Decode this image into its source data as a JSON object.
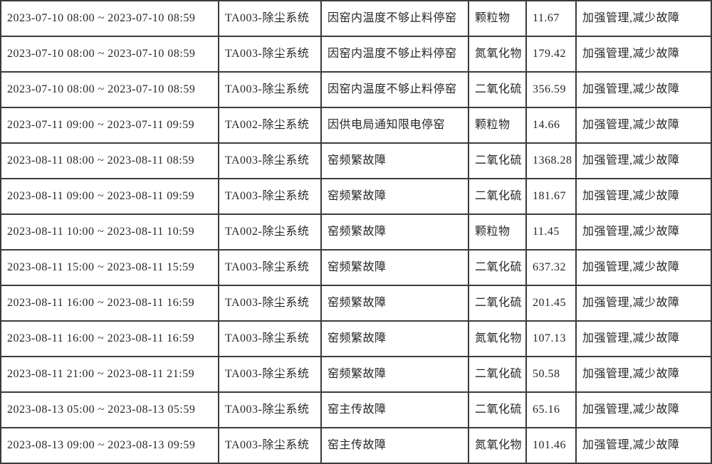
{
  "colors": {
    "border": "#3b3b3b",
    "text": "#262626",
    "background": "#ffffff"
  },
  "table": {
    "column_keys": [
      "time_range",
      "system",
      "reason",
      "pollutant",
      "value",
      "suggestion"
    ],
    "column_names": [
      "time-range-cell",
      "system-cell",
      "reason-cell",
      "pollutant-cell",
      "value-cell",
      "suggestion-cell"
    ],
    "rows": [
      {
        "time_range": "2023-07-10 08:00 ~ 2023-07-10 08:59",
        "system": "TA003-除尘系统",
        "reason": "因窑内温度不够止料停窑",
        "pollutant": "颗粒物",
        "value": "11.67",
        "suggestion": "加强管理,减少故障"
      },
      {
        "time_range": "2023-07-10 08:00 ~ 2023-07-10 08:59",
        "system": "TA003-除尘系统",
        "reason": "因窑内温度不够止料停窑",
        "pollutant": "氮氧化物",
        "value": "179.42",
        "suggestion": "加强管理,减少故障"
      },
      {
        "time_range": "2023-07-10 08:00 ~ 2023-07-10 08:59",
        "system": "TA003-除尘系统",
        "reason": "因窑内温度不够止料停窑",
        "pollutant": "二氧化硫",
        "value": "356.59",
        "suggestion": "加强管理,减少故障"
      },
      {
        "time_range": "2023-07-11 09:00 ~ 2023-07-11 09:59",
        "system": "TA002-除尘系统",
        "reason": "因供电局通知限电停窑",
        "pollutant": "颗粒物",
        "value": "14.66",
        "suggestion": "加强管理,减少故障"
      },
      {
        "time_range": "2023-08-11 08:00 ~ 2023-08-11 08:59",
        "system": "TA003-除尘系统",
        "reason": "窑频繁故障",
        "pollutant": "二氧化硫",
        "value": "1368.28",
        "suggestion": "加强管理,减少故障"
      },
      {
        "time_range": "2023-08-11 09:00 ~ 2023-08-11 09:59",
        "system": "TA003-除尘系统",
        "reason": "窑频繁故障",
        "pollutant": "二氧化硫",
        "value": "181.67",
        "suggestion": "加强管理,减少故障"
      },
      {
        "time_range": "2023-08-11 10:00 ~ 2023-08-11 10:59",
        "system": "TA002-除尘系统",
        "reason": "窑频繁故障",
        "pollutant": "颗粒物",
        "value": "11.45",
        "suggestion": "加强管理,减少故障"
      },
      {
        "time_range": "2023-08-11 15:00 ~ 2023-08-11 15:59",
        "system": "TA003-除尘系统",
        "reason": "窑频繁故障",
        "pollutant": "二氧化硫",
        "value": "637.32",
        "suggestion": "加强管理,减少故障"
      },
      {
        "time_range": "2023-08-11 16:00 ~ 2023-08-11 16:59",
        "system": "TA003-除尘系统",
        "reason": "窑频繁故障",
        "pollutant": "二氧化硫",
        "value": "201.45",
        "suggestion": "加强管理,减少故障"
      },
      {
        "time_range": "2023-08-11 16:00 ~ 2023-08-11 16:59",
        "system": "TA003-除尘系统",
        "reason": "窑频繁故障",
        "pollutant": "氮氧化物",
        "value": "107.13",
        "suggestion": "加强管理,减少故障"
      },
      {
        "time_range": "2023-08-11 21:00 ~ 2023-08-11 21:59",
        "system": "TA003-除尘系统",
        "reason": "窑频繁故障",
        "pollutant": "二氧化硫",
        "value": "50.58",
        "suggestion": "加强管理,减少故障"
      },
      {
        "time_range": "2023-08-13 05:00 ~ 2023-08-13 05:59",
        "system": "TA003-除尘系统",
        "reason": "窑主传故障",
        "pollutant": "二氧化硫",
        "value": "65.16",
        "suggestion": "加强管理,减少故障"
      },
      {
        "time_range": "2023-08-13 09:00 ~ 2023-08-13 09:59",
        "system": "TA003-除尘系统",
        "reason": "窑主传故障",
        "pollutant": "氮氧化物",
        "value": "101.46",
        "suggestion": "加强管理,减少故障"
      }
    ]
  }
}
